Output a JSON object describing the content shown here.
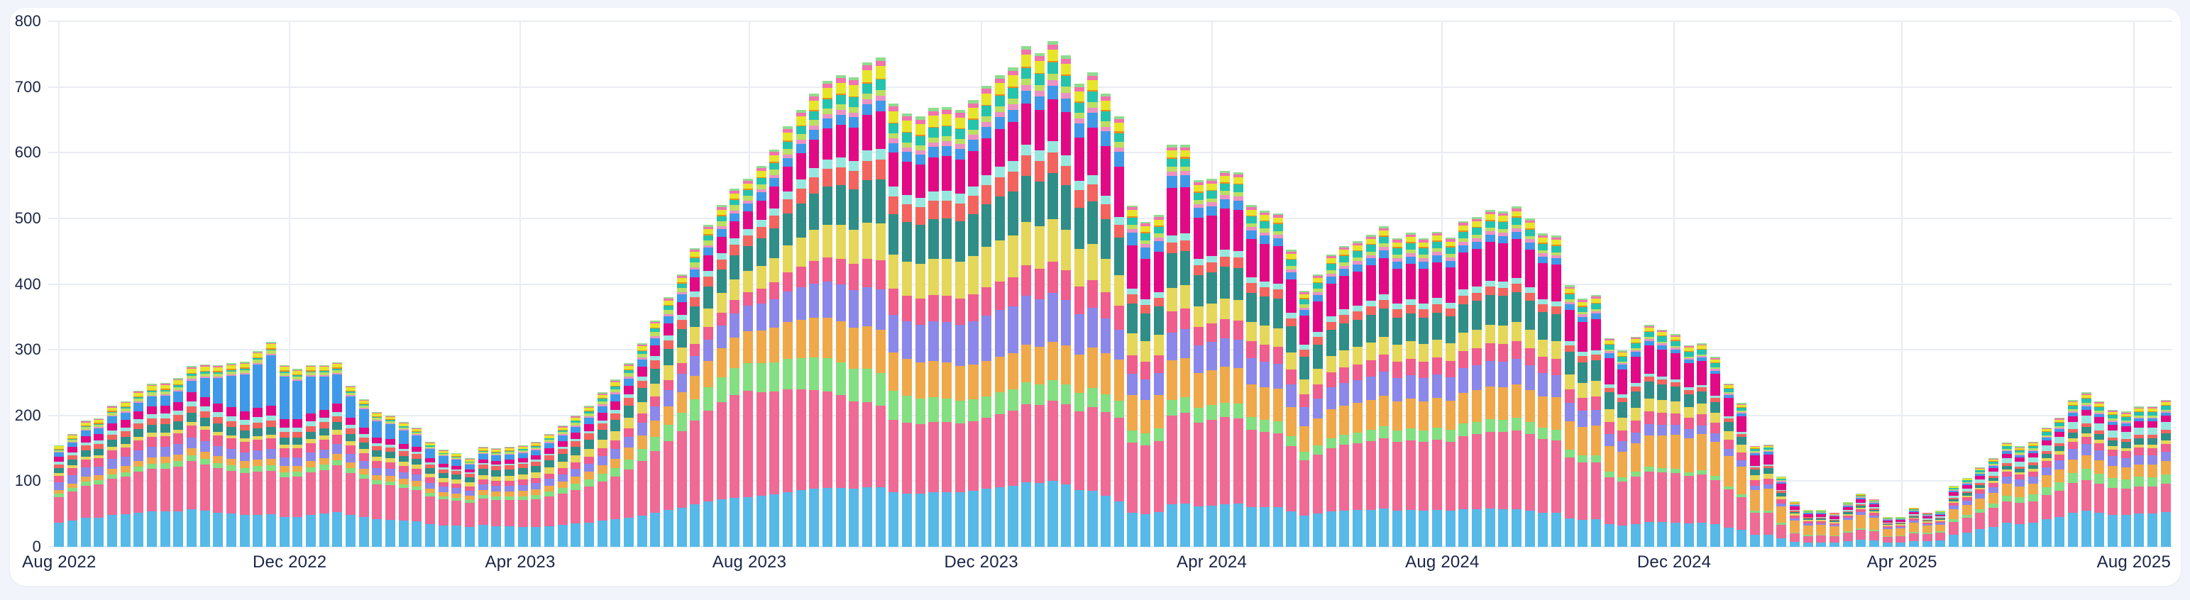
{
  "page": {
    "background": "#F1F4FB",
    "card_background": "#FFFFFF",
    "gridline_color": "#E9ECF2",
    "axis_label_color": "#1B2547"
  },
  "chart_data": {
    "type": "bar",
    "stacked": true,
    "title": "",
    "legend": "none",
    "grid": true,
    "x_interval": "weekly",
    "ylim": [
      0,
      800
    ],
    "y_ticks": [
      0,
      100,
      200,
      300,
      400,
      500,
      600,
      700,
      800
    ],
    "x_ticks": [
      {
        "label": "Aug 2022",
        "week": 0
      },
      {
        "label": "Dec 2022",
        "week": 17.4
      },
      {
        "label": "Apr 2023",
        "week": 34.8
      },
      {
        "label": "Aug 2023",
        "week": 52.1
      },
      {
        "label": "Dec 2023",
        "week": 69.6
      },
      {
        "label": "Apr 2024",
        "week": 87
      },
      {
        "label": "Aug 2024",
        "week": 104.4
      },
      {
        "label": "Dec 2024",
        "week": 121.9
      },
      {
        "label": "Apr 2025",
        "week": 139.1
      },
      {
        "label": "Aug 2025",
        "week": 156.6
      }
    ],
    "bar_count": 160,
    "totals": [
      155,
      172,
      192,
      196,
      215,
      222,
      238,
      248,
      250,
      257,
      275,
      278,
      277,
      280,
      282,
      298,
      312,
      277,
      271,
      277,
      277,
      281,
      245,
      225,
      205,
      200,
      190,
      182,
      160,
      148,
      143,
      135,
      152,
      150,
      152,
      155,
      160,
      172,
      185,
      200,
      215,
      235,
      255,
      280,
      310,
      345,
      380,
      415,
      455,
      490,
      520,
      545,
      560,
      580,
      605,
      640,
      665,
      690,
      710,
      718,
      715,
      738,
      745,
      675,
      660,
      655,
      668,
      670,
      665,
      680,
      702,
      718,
      730,
      762,
      752,
      770,
      748,
      705,
      722,
      690,
      655,
      520,
      495,
      505,
      612,
      612,
      558,
      560,
      572,
      570,
      520,
      512,
      508,
      452,
      390,
      415,
      445,
      458,
      465,
      475,
      488,
      470,
      478,
      470,
      480,
      471,
      496,
      502,
      513,
      511,
      518,
      500,
      477,
      474,
      398,
      378,
      383,
      318,
      299,
      320,
      338,
      331,
      324,
      307,
      310,
      289,
      249,
      219,
      154,
      156,
      107,
      69,
      56,
      56,
      52,
      68,
      81,
      73,
      45,
      46,
      60,
      52,
      55,
      93,
      105,
      121,
      135,
      159,
      153,
      160,
      182,
      197,
      224,
      235,
      222,
      209,
      206,
      214,
      214,
      224
    ],
    "composition_rule": "value(series,week) = interp(anchor_values over anchor_weeks) scaled so the stack sums to totals[week]",
    "anchor_weeks": [
      0,
      10,
      16,
      22,
      31,
      42,
      52,
      62,
      70,
      75,
      81,
      87,
      94,
      104,
      112,
      118,
      124,
      131,
      140,
      146,
      153,
      159
    ],
    "series": [
      {
        "name": "sky-blue",
        "color": "#56B9E8",
        "anchor_values": [
          38,
          46,
          48,
          42,
          32,
          40,
          75,
          90,
          92,
          95,
          48,
          62,
          52,
          62,
          55,
          38,
          30,
          8,
          9,
          28,
          52,
          60
        ]
      },
      {
        "name": "rose-pink",
        "color": "#EF6A94",
        "anchor_values": [
          40,
          58,
          65,
          55,
          38,
          62,
          160,
          122,
          112,
          115,
          100,
          128,
          92,
          118,
          118,
          78,
          60,
          12,
          13,
          26,
          45,
          48
        ]
      },
      {
        "name": "light-green",
        "color": "#84DF82",
        "anchor_values": [
          5,
          7,
          8,
          6,
          4,
          12,
          42,
          50,
          34,
          30,
          18,
          22,
          14,
          20,
          18,
          8,
          5,
          2,
          2,
          6,
          16,
          17
        ]
      },
      {
        "name": "amber-orange",
        "color": "#EFA94A",
        "anchor_values": [
          6,
          9,
          10,
          8,
          7,
          14,
          48,
          65,
          56,
          55,
          50,
          52,
          42,
          50,
          50,
          46,
          45,
          18,
          15,
          15,
          20,
          22
        ]
      },
      {
        "name": "periwinkle-purple",
        "color": "#8B88EA",
        "anchor_values": [
          12,
          13,
          14,
          11,
          8,
          14,
          38,
          60,
          72,
          70,
          30,
          42,
          32,
          40,
          38,
          18,
          11,
          3,
          3,
          8,
          16,
          17
        ]
      },
      {
        "name": "deep-rose",
        "color": "#EF5E8C",
        "anchor_values": [
          10,
          14,
          16,
          11,
          7,
          12,
          20,
          44,
          44,
          45,
          26,
          28,
          22,
          28,
          26,
          20,
          14,
          4,
          3,
          6,
          11,
          13
        ]
      },
      {
        "name": "khaki-yellow",
        "color": "#E4D75A",
        "anchor_values": [
          4,
          5,
          5,
          6,
          6,
          14,
          32,
          56,
          64,
          62,
          32,
          30,
          24,
          30,
          28,
          22,
          13,
          3,
          2,
          3,
          5,
          6
        ]
      },
      {
        "name": "dark-teal",
        "color": "#2F8E87",
        "anchor_values": [
          8,
          11,
          12,
          9,
          8,
          16,
          38,
          66,
          68,
          66,
          42,
          46,
          38,
          46,
          44,
          28,
          15,
          3,
          2,
          4,
          9,
          12
        ]
      },
      {
        "name": "coral-red",
        "color": "#F3645E",
        "anchor_values": [
          6,
          8,
          9,
          7,
          6,
          10,
          16,
          30,
          30,
          30,
          13,
          15,
          12,
          14,
          12,
          8,
          5,
          2,
          1,
          3,
          5,
          6
        ]
      },
      {
        "name": "pale-turquoise",
        "color": "#98E7DF",
        "anchor_values": [
          4,
          6,
          8,
          5,
          2,
          5,
          10,
          16,
          16,
          16,
          8,
          10,
          8,
          10,
          9,
          6,
          3,
          1,
          2,
          6,
          11,
          14
        ]
      },
      {
        "name": "magenta",
        "color": "#E20985",
        "anchor_values": [
          8,
          11,
          14,
          9,
          5,
          12,
          26,
          56,
          58,
          60,
          62,
          60,
          48,
          60,
          58,
          45,
          30,
          5,
          4,
          5,
          9,
          11
        ]
      },
      {
        "name": "azure-blue",
        "color": "#4099E8",
        "anchor_values": [
          6,
          14,
          75,
          28,
          8,
          10,
          12,
          16,
          18,
          20,
          18,
          14,
          10,
          12,
          10,
          8,
          4,
          2,
          2,
          3,
          5,
          5
        ]
      },
      {
        "name": "orchid-pink",
        "color": "#EC92C3",
        "anchor_values": [
          1,
          2,
          2,
          2,
          1,
          3,
          4,
          8,
          8,
          8,
          5,
          6,
          4,
          6,
          5,
          3,
          2,
          1,
          0.5,
          1,
          2,
          2
        ]
      },
      {
        "name": "pear-green",
        "color": "#BBDF62",
        "anchor_values": [
          3,
          4,
          5,
          3,
          2,
          5,
          8,
          8,
          9,
          9,
          6,
          6,
          5,
          6,
          5,
          3,
          2,
          1,
          1,
          2,
          3,
          3
        ]
      },
      {
        "name": "emerald",
        "color": "#25C3AC",
        "anchor_values": [
          1,
          2,
          2,
          2,
          1,
          4,
          8,
          16,
          16,
          16,
          10,
          11,
          9,
          11,
          10,
          8,
          6,
          1,
          1,
          3,
          6,
          7
        ]
      },
      {
        "name": "bright-orange",
        "color": "#EE8A1C",
        "anchor_values": [
          1,
          1.5,
          1.5,
          1,
          0.5,
          1,
          2,
          1.5,
          2,
          2,
          2,
          2,
          1.5,
          2,
          2,
          1.5,
          1,
          0.5,
          0.5,
          0.5,
          1,
          1
        ]
      },
      {
        "name": "bright-yellow",
        "color": "#E7E52A",
        "anchor_values": [
          4,
          5,
          6,
          4,
          3,
          5,
          8,
          19,
          18,
          17,
          9,
          9,
          7,
          8,
          8,
          6,
          4,
          1,
          1,
          2,
          4,
          5
        ]
      },
      {
        "name": "hot-pink",
        "color": "#F173AC",
        "anchor_values": [
          1,
          1.5,
          1.5,
          1,
          1,
          2,
          4,
          8,
          7,
          7,
          4,
          4,
          3,
          4,
          4,
          2,
          1.5,
          0.5,
          0.5,
          1,
          2,
          2
        ]
      },
      {
        "name": "mint-green",
        "color": "#8FDC8E",
        "anchor_values": [
          1,
          1.5,
          2,
          1,
          1,
          2,
          3,
          5,
          5,
          5,
          3,
          3,
          2.5,
          3,
          3,
          2,
          1.5,
          0.5,
          0.5,
          1,
          2,
          2
        ]
      }
    ]
  }
}
